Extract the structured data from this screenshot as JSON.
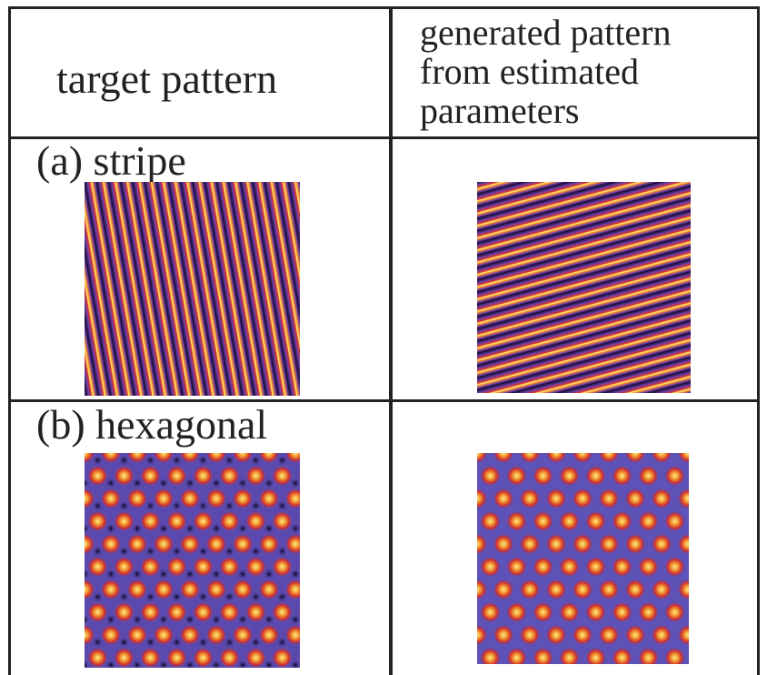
{
  "table": {
    "header": [
      "target pattern",
      "generated pattern from estimated parameters"
    ],
    "rows": [
      {
        "label": "(a) stripe"
      },
      {
        "label": "(b) hexagonal"
      }
    ]
  }
}
